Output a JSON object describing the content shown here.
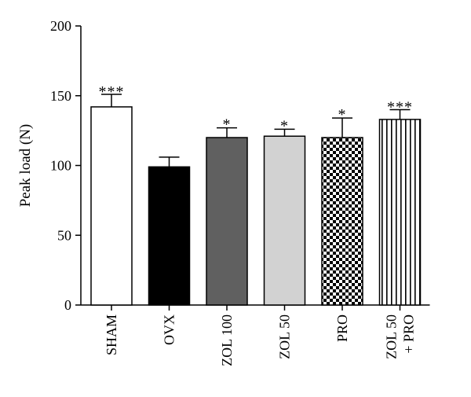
{
  "chart_data": {
    "type": "bar",
    "title": "",
    "ylabel": "Peak load (N)",
    "xlabel": "",
    "ylim": [
      0,
      200
    ],
    "yticks": [
      0,
      50,
      100,
      150,
      200
    ],
    "grid": false,
    "legend": "none",
    "categories": [
      [
        "SHAM"
      ],
      [
        "OVX"
      ],
      [
        "ZOL 100"
      ],
      [
        "ZOL 50"
      ],
      [
        "PRO"
      ],
      [
        "ZOL 50",
        "+ PRO"
      ]
    ],
    "values": [
      142,
      99,
      120,
      121,
      120,
      133
    ],
    "errors": [
      9,
      7,
      7,
      5,
      14,
      7
    ],
    "significance": [
      "***",
      "",
      "*",
      "*",
      "*",
      "***"
    ],
    "fills": [
      "white",
      "black",
      "dark-gray",
      "light-gray",
      "checkerboard",
      "vertical-stripes"
    ],
    "colors": {
      "axis": "#000000",
      "dark_gray": "#606060",
      "light_gray": "#d2d2d2"
    }
  }
}
